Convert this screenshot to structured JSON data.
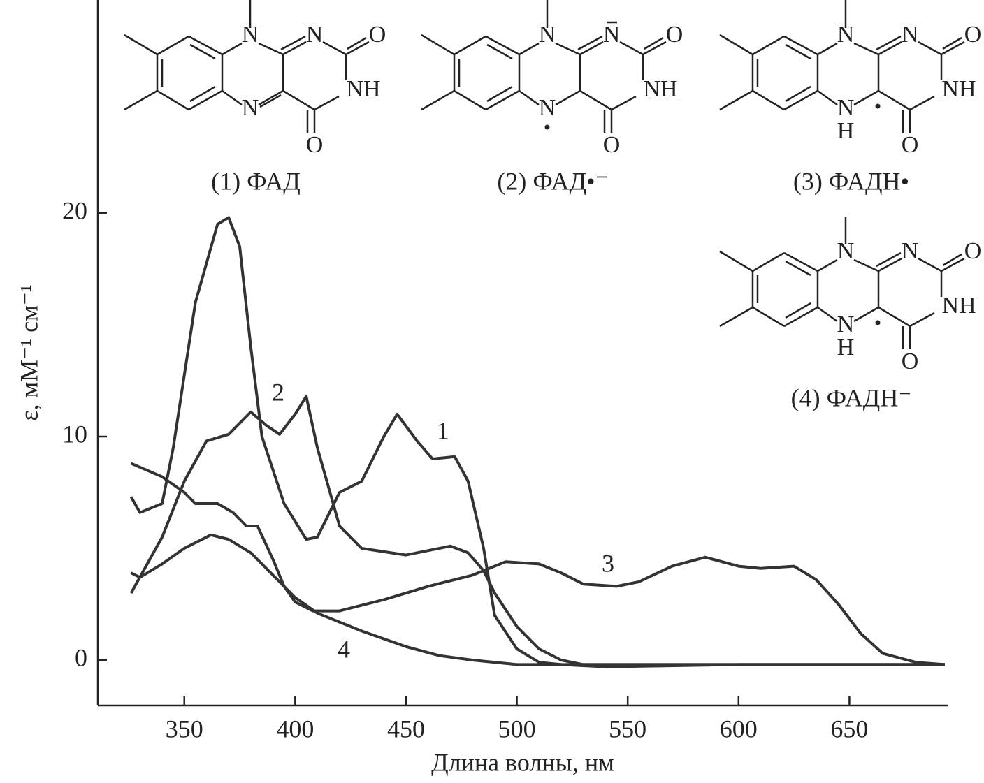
{
  "chart_data": {
    "type": "line",
    "xlabel": "Длина волны, нм",
    "ylabel": "ε, мМ⁻¹ см⁻¹",
    "xlim": [
      311,
      694
    ],
    "ylim": [
      -2,
      29.5
    ],
    "xticks": [
      350,
      400,
      450,
      500,
      550,
      600,
      650
    ],
    "yticks": [
      0,
      10,
      20
    ],
    "color": "#333333",
    "series": [
      {
        "name": "1",
        "x": [
          326,
          330,
          340,
          345,
          355,
          365,
          370,
          375,
          380,
          385,
          395,
          405,
          410,
          420,
          430,
          440,
          446,
          455,
          462,
          472,
          478,
          485,
          490,
          500,
          510,
          520,
          540,
          600,
          693
        ],
        "values": [
          7.3,
          6.6,
          7.0,
          9.5,
          16,
          19.5,
          19.8,
          18.5,
          14,
          10,
          7,
          5.4,
          5.5,
          7.5,
          8,
          10,
          11,
          9.8,
          9,
          9.1,
          8,
          5,
          2,
          0.5,
          -0.1,
          -0.2,
          -0.3,
          -0.2,
          -0.2
        ]
      },
      {
        "name": "2",
        "x": [
          326,
          340,
          350,
          360,
          370,
          380,
          387,
          393,
          400,
          405,
          410,
          420,
          430,
          450,
          470,
          478,
          485,
          490,
          500,
          510,
          520,
          530,
          600,
          693
        ],
        "values": [
          3,
          5.5,
          8,
          9.8,
          10.1,
          11.1,
          10.5,
          10.1,
          11,
          11.8,
          9.5,
          6,
          5,
          4.7,
          5.1,
          4.8,
          4,
          3,
          1.5,
          0.5,
          0,
          -0.2,
          -0.2,
          -0.2
        ]
      },
      {
        "name": "3",
        "x": [
          326,
          340,
          350,
          355,
          365,
          372,
          378,
          383,
          390,
          395,
          400,
          408,
          420,
          440,
          460,
          480,
          495,
          510,
          520,
          530,
          545,
          555,
          570,
          585,
          600,
          610,
          625,
          635,
          645,
          655,
          665,
          680,
          693
        ],
        "values": [
          8.8,
          8.2,
          7.5,
          7.0,
          7.0,
          6.6,
          6.0,
          6.0,
          4.5,
          3.3,
          2.6,
          2.2,
          2.2,
          2.7,
          3.3,
          3.8,
          4.4,
          4.3,
          3.9,
          3.4,
          3.3,
          3.5,
          4.2,
          4.6,
          4.2,
          4.1,
          4.2,
          3.6,
          2.5,
          1.2,
          0.3,
          -0.1,
          -0.2
        ]
      },
      {
        "name": "4",
        "x": [
          326,
          330,
          340,
          350,
          362,
          370,
          380,
          390,
          400,
          410,
          430,
          450,
          465,
          480,
          500,
          600,
          693
        ],
        "values": [
          3.9,
          3.7,
          4.3,
          5.0,
          5.6,
          5.4,
          4.8,
          3.8,
          2.8,
          2.1,
          1.3,
          0.6,
          0.2,
          0.0,
          -0.2,
          -0.2,
          -0.2
        ]
      }
    ],
    "structures": [
      {
        "label": "(1) ФАД",
        "atoms": [
          "N",
          "N",
          "O",
          "NH",
          "N",
          "O"
        ]
      },
      {
        "label": "(2) ФАД•⁻",
        "atoms": [
          "N",
          "N",
          "O",
          "NH",
          "N",
          "O"
        ]
      },
      {
        "label": "(3) ФАДН•",
        "atoms": [
          "N",
          "N",
          "O",
          "NH",
          "N",
          "O",
          "H"
        ]
      },
      {
        "label": "(4) ФАДН⁻",
        "atoms": [
          "N",
          "N",
          "O",
          "NH",
          "N",
          "O",
          "H"
        ]
      }
    ]
  }
}
